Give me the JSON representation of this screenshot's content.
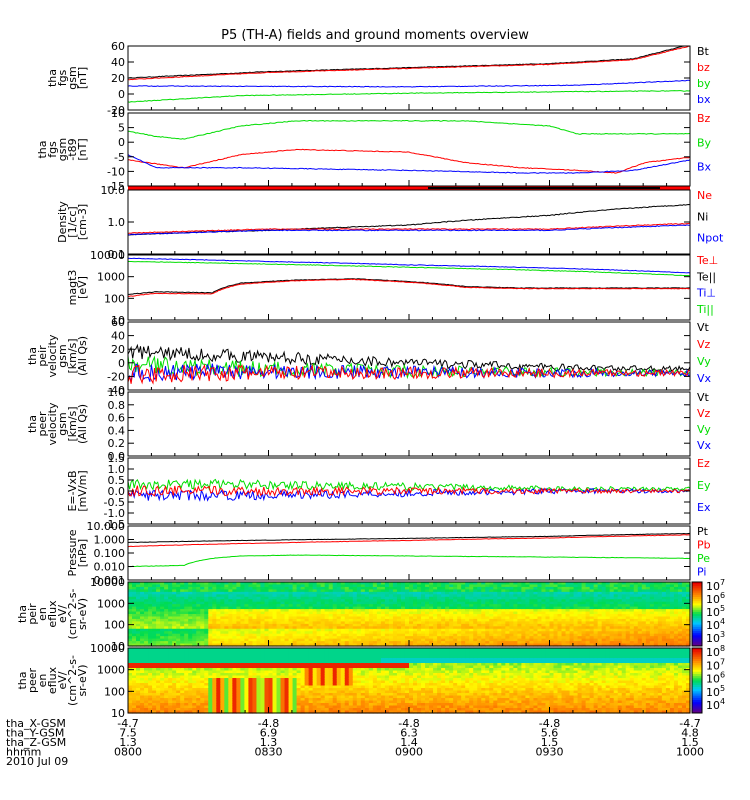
{
  "title": "P5 (TH-A) fields and ground moments overview",
  "chart_data": {
    "type": "line",
    "date": "2010 Jul 09",
    "x_range": [
      "0800",
      "1000"
    ],
    "x_ticks": [
      "0800",
      "0830",
      "0900",
      "0930",
      "1000"
    ],
    "footer_rows": [
      {
        "label": "tha_X-GSM",
        "values": [
          "-4.7",
          "-4.8",
          "-4.8",
          "-4.8",
          "-4.7"
        ]
      },
      {
        "label": "tha_Y-GSM",
        "values": [
          "7.5",
          "6.9",
          "6.3",
          "5.6",
          "4.8"
        ]
      },
      {
        "label": "tha_Z-GSM",
        "values": [
          "1.3",
          "1.3",
          "1.4",
          "1.5",
          "1.5"
        ]
      },
      {
        "label": "hhmm",
        "values": [
          "0800",
          "0830",
          "0900",
          "0930",
          "1000"
        ]
      }
    ],
    "panels": [
      {
        "ylabel": [
          "tha",
          "fgs",
          "gsm",
          "[nT]"
        ],
        "scale": "linear",
        "ylim": [
          -20,
          60
        ],
        "ticks": [
          "60",
          "40",
          "20",
          "0",
          "-20"
        ],
        "legend": [
          {
            "name": "Bt",
            "color": "#000000"
          },
          {
            "name": "bz",
            "color": "#ff0000"
          },
          {
            "name": "by",
            "color": "#00dd00"
          },
          {
            "name": "bx",
            "color": "#0000ff"
          }
        ],
        "series": [
          {
            "name": "Bt",
            "color": "#000000",
            "x": [
              0,
              0.25,
              0.5,
              0.75,
              0.9,
              1
            ],
            "y": [
              20,
              28,
              33,
              38,
              44,
              62
            ]
          },
          {
            "name": "bz",
            "color": "#ff0000",
            "x": [
              0,
              0.25,
              0.5,
              0.75,
              0.9,
              1
            ],
            "y": [
              18,
              27,
              32,
              37,
              43,
              60
            ]
          },
          {
            "name": "by",
            "color": "#00dd00",
            "x": [
              0,
              0.2,
              0.5,
              0.8,
              1
            ],
            "y": [
              -10,
              -2,
              1,
              3,
              4
            ]
          },
          {
            "name": "bx",
            "color": "#0000ff",
            "x": [
              0,
              0.5,
              0.8,
              1
            ],
            "y": [
              10,
              9,
              11,
              17
            ]
          }
        ]
      },
      {
        "ylabel": [
          "tha",
          "fgs",
          "gsm",
          "-t89",
          "[nT]"
        ],
        "scale": "linear",
        "ylim": [
          -17,
          11
        ],
        "ticks": [
          "10",
          "5",
          "0",
          "-5",
          "-10",
          "-15"
        ],
        "legend": [
          {
            "name": "Bz",
            "color": "#ff0000"
          },
          {
            "name": "By",
            "color": "#00dd00"
          },
          {
            "name": "Bx",
            "color": "#0000ff"
          }
        ],
        "series": [
          {
            "name": "By",
            "color": "#00dd00",
            "x": [
              0,
              0.05,
              0.1,
              0.2,
              0.3,
              0.5,
              0.6,
              0.75,
              0.8,
              1
            ],
            "y": [
              4,
              2,
              1,
              6,
              8,
              8,
              8,
              6,
              3,
              3
            ]
          },
          {
            "name": "Bz",
            "color": "#ff0000",
            "x": [
              0,
              0.1,
              0.2,
              0.3,
              0.5,
              0.6,
              0.7,
              0.8,
              0.87,
              0.92,
              1
            ],
            "y": [
              -7,
              -10,
              -5,
              -3,
              -4,
              -8,
              -10,
              -11,
              -12,
              -8,
              -6
            ]
          },
          {
            "name": "Bx",
            "color": "#0000ff",
            "x": [
              0,
              0.05,
              0.2,
              0.5,
              0.7,
              0.8,
              0.9,
              1
            ],
            "y": [
              -5,
              -10,
              -10,
              -11,
              -12,
              -12,
              -11,
              -7
            ]
          }
        ]
      },
      {
        "ylabel": [
          "Density",
          "[1/cc]",
          "[cm-3]"
        ],
        "scale": "log",
        "ylim": [
          0.1,
          10
        ],
        "ticks": [
          "10.0",
          "1.0",
          "0.1"
        ],
        "legend": [
          {
            "name": "Ne",
            "color": "#ff0000"
          },
          {
            "name": "Ni",
            "color": "#000000"
          },
          {
            "name": "Npot",
            "color": "#0000ff"
          }
        ],
        "series": [
          {
            "name": "Ni",
            "color": "#000000",
            "x": [
              0,
              0.25,
              0.5,
              0.75,
              1
            ],
            "y": [
              0.4,
              0.55,
              0.8,
              1.6,
              3.5
            ]
          },
          {
            "name": "Ne",
            "color": "#ff0000",
            "x": [
              0,
              0.25,
              0.5,
              0.75,
              1
            ],
            "y": [
              0.45,
              0.6,
              0.6,
              0.6,
              0.9
            ]
          },
          {
            "name": "Npot",
            "color": "#0000ff",
            "x": [
              0,
              0.25,
              0.5,
              0.75,
              1
            ],
            "y": [
              0.4,
              0.55,
              0.55,
              0.55,
              0.8
            ]
          }
        ]
      },
      {
        "ylabel": [
          "magt3",
          "[eV]"
        ],
        "scale": "log",
        "ylim": [
          10,
          10000
        ],
        "ticks": [
          "10000",
          "1000",
          "100",
          "10"
        ],
        "legend": [
          {
            "name": "Te⊥",
            "color": "#ff0000"
          },
          {
            "name": "Te||",
            "color": "#000000"
          },
          {
            "name": "Ti⊥",
            "color": "#0000ff"
          },
          {
            "name": "Ti||",
            "color": "#00dd00"
          }
        ],
        "series": [
          {
            "name": "Ti⊥",
            "color": "#0000ff",
            "x": [
              0,
              0.25,
              0.5,
              0.75,
              1
            ],
            "y": [
              7000,
              5000,
              3500,
              2500,
              1500
            ]
          },
          {
            "name": "Ti||",
            "color": "#00dd00",
            "x": [
              0,
              0.25,
              0.5,
              0.75,
              1
            ],
            "y": [
              5000,
              3800,
              2700,
              1900,
              1100
            ]
          },
          {
            "name": "Te||",
            "color": "#000000",
            "x": [
              0,
              0.05,
              0.15,
              0.2,
              0.3,
              0.4,
              0.5,
              0.6,
              0.7,
              0.8,
              1
            ],
            "y": [
              150,
              200,
              180,
              500,
              700,
              800,
              600,
              350,
              300,
              300,
              300
            ]
          },
          {
            "name": "Te⊥",
            "color": "#ff0000",
            "x": [
              0,
              0.05,
              0.15,
              0.2,
              0.3,
              0.4,
              0.5,
              0.6,
              0.7,
              0.8,
              1
            ],
            "y": [
              120,
              170,
              160,
              450,
              650,
              750,
              550,
              320,
              280,
              280,
              280
            ]
          }
        ]
      },
      {
        "ylabel": [
          "tha",
          "peir",
          "velocity",
          "gsm",
          "[km/s]",
          "(All Qs)"
        ],
        "scale": "linear",
        "ylim": [
          -20,
          60
        ],
        "ticks": [
          "60",
          "40",
          "20",
          "0",
          "-20",
          "-40"
        ],
        "legend": [
          {
            "name": "Vt",
            "color": "#000000"
          },
          {
            "name": "Vz",
            "color": "#ff0000"
          },
          {
            "name": "Vy",
            "color": "#00dd00"
          },
          {
            "name": "Vx",
            "color": "#0000ff"
          }
        ],
        "series": [
          {
            "name": "Vt",
            "color": "#000000",
            "x": [
              0,
              0.2,
              0.5,
              0.8,
              1
            ],
            "y": [
              25,
              20,
              12,
              6,
              5
            ]
          },
          {
            "name": "Vy",
            "color": "#00dd00",
            "x": [
              0,
              0.2,
              0.5,
              0.8,
              1
            ],
            "y": [
              10,
              5,
              2,
              1,
              0
            ]
          },
          {
            "name": "Vx",
            "color": "#0000ff",
            "x": [
              0,
              0.2,
              0.5,
              0.8,
              1
            ],
            "y": [
              0,
              2,
              1,
              0,
              0
            ]
          },
          {
            "name": "Vz",
            "color": "#ff0000",
            "x": [
              0,
              0.2,
              0.5,
              0.8,
              1
            ],
            "y": [
              -2,
              0,
              0,
              0,
              0
            ]
          }
        ]
      },
      {
        "ylabel": [
          "tha",
          "peer",
          "velocity",
          "gsm",
          "[km/s]",
          "(All Qs)"
        ],
        "scale": "linear",
        "ylim": [
          0,
          1
        ],
        "ticks": [
          "1.0",
          "0.8",
          "0.6",
          "0.4",
          "0.2",
          "0.0"
        ],
        "legend": [
          {
            "name": "Vt",
            "color": "#000000"
          },
          {
            "name": "Vz",
            "color": "#ff0000"
          },
          {
            "name": "Vy",
            "color": "#00dd00"
          },
          {
            "name": "Vx",
            "color": "#0000ff"
          }
        ],
        "series": []
      },
      {
        "ylabel": [
          "E=-VxB",
          "[mV/m]"
        ],
        "scale": "linear",
        "ylim": [
          -1.5,
          1.5
        ],
        "ticks": [
          "1.5",
          "1.0",
          "0.5",
          "0.0",
          "-0.5",
          "-1.0",
          "-1.5"
        ],
        "legend": [
          {
            "name": "Ez",
            "color": "#ff0000"
          },
          {
            "name": "Ey",
            "color": "#00dd00"
          },
          {
            "name": "Ex",
            "color": "#0000ff"
          }
        ],
        "series": [
          {
            "name": "Ey",
            "color": "#00dd00",
            "x": [
              0,
              0.2,
              0.5,
              0.8,
              1
            ],
            "y": [
              0.3,
              0.3,
              0.2,
              0.1,
              0.1
            ]
          },
          {
            "name": "Ex",
            "color": "#0000ff",
            "x": [
              0,
              0.2,
              0.5,
              0.8,
              1
            ],
            "y": [
              -0.2,
              -0.2,
              -0.1,
              0,
              0
            ]
          },
          {
            "name": "Ez",
            "color": "#ff0000",
            "x": [
              0,
              0.2,
              0.5,
              0.8,
              1
            ],
            "y": [
              0,
              0,
              0,
              0,
              0
            ]
          }
        ]
      },
      {
        "ylabel": [
          "Pressure",
          "[nPa]"
        ],
        "scale": "log",
        "ylim": [
          0.001,
          10
        ],
        "ticks": [
          "10.000",
          "1.000",
          "0.100",
          "0.010",
          "0.001"
        ],
        "legend": [
          {
            "name": "Pt",
            "color": "#000000"
          },
          {
            "name": "Pb",
            "color": "#ff0000"
          },
          {
            "name": "Pe",
            "color": "#00dd00"
          },
          {
            "name": "Pi",
            "color": "#0000ff"
          }
        ],
        "series": [
          {
            "name": "Pt",
            "color": "#000000",
            "x": [
              0,
              0.25,
              0.5,
              0.75,
              1
            ],
            "y": [
              0.6,
              0.9,
              1.2,
              1.7,
              2.8
            ]
          },
          {
            "name": "Pb",
            "color": "#ff0000",
            "x": [
              0,
              0.25,
              0.5,
              0.75,
              1
            ],
            "y": [
              0.3,
              0.55,
              0.85,
              1.3,
              2.2
            ]
          },
          {
            "name": "Pe",
            "color": "#00dd00",
            "x": [
              0,
              0.1,
              0.15,
              0.2,
              0.3,
              0.5,
              0.75,
              1
            ],
            "y": [
              0.01,
              0.012,
              0.04,
              0.06,
              0.07,
              0.06,
              0.05,
              0.04
            ]
          }
        ]
      },
      {
        "ylabel": [
          "tha",
          "peir",
          "en",
          "eflux",
          "eV/",
          "(cm^2-s-",
          "sr-eV)"
        ],
        "type": "heatmap",
        "scale": "log",
        "ylim": [
          10,
          20000
        ],
        "ticks": [
          "10000",
          "1000",
          "100",
          "10"
        ],
        "colorbar_ticks": [
          "10",
          "10",
          "10",
          "10",
          "10"
        ],
        "colorbar_exps": [
          "7",
          "6",
          "5",
          "4",
          "3"
        ]
      },
      {
        "ylabel": [
          "tha",
          "peer",
          "en",
          "eflux",
          "eV/",
          "(cm^2-s-",
          "sr-eV)"
        ],
        "type": "heatmap",
        "scale": "log",
        "ylim": [
          10,
          20000
        ],
        "ticks": [
          "10000",
          "1000",
          "100",
          "10"
        ],
        "colorbar_ticks": [
          "10",
          "10",
          "10",
          "10",
          "10"
        ],
        "colorbar_exps": [
          "8",
          "7",
          "6",
          "5",
          "4"
        ]
      }
    ]
  }
}
